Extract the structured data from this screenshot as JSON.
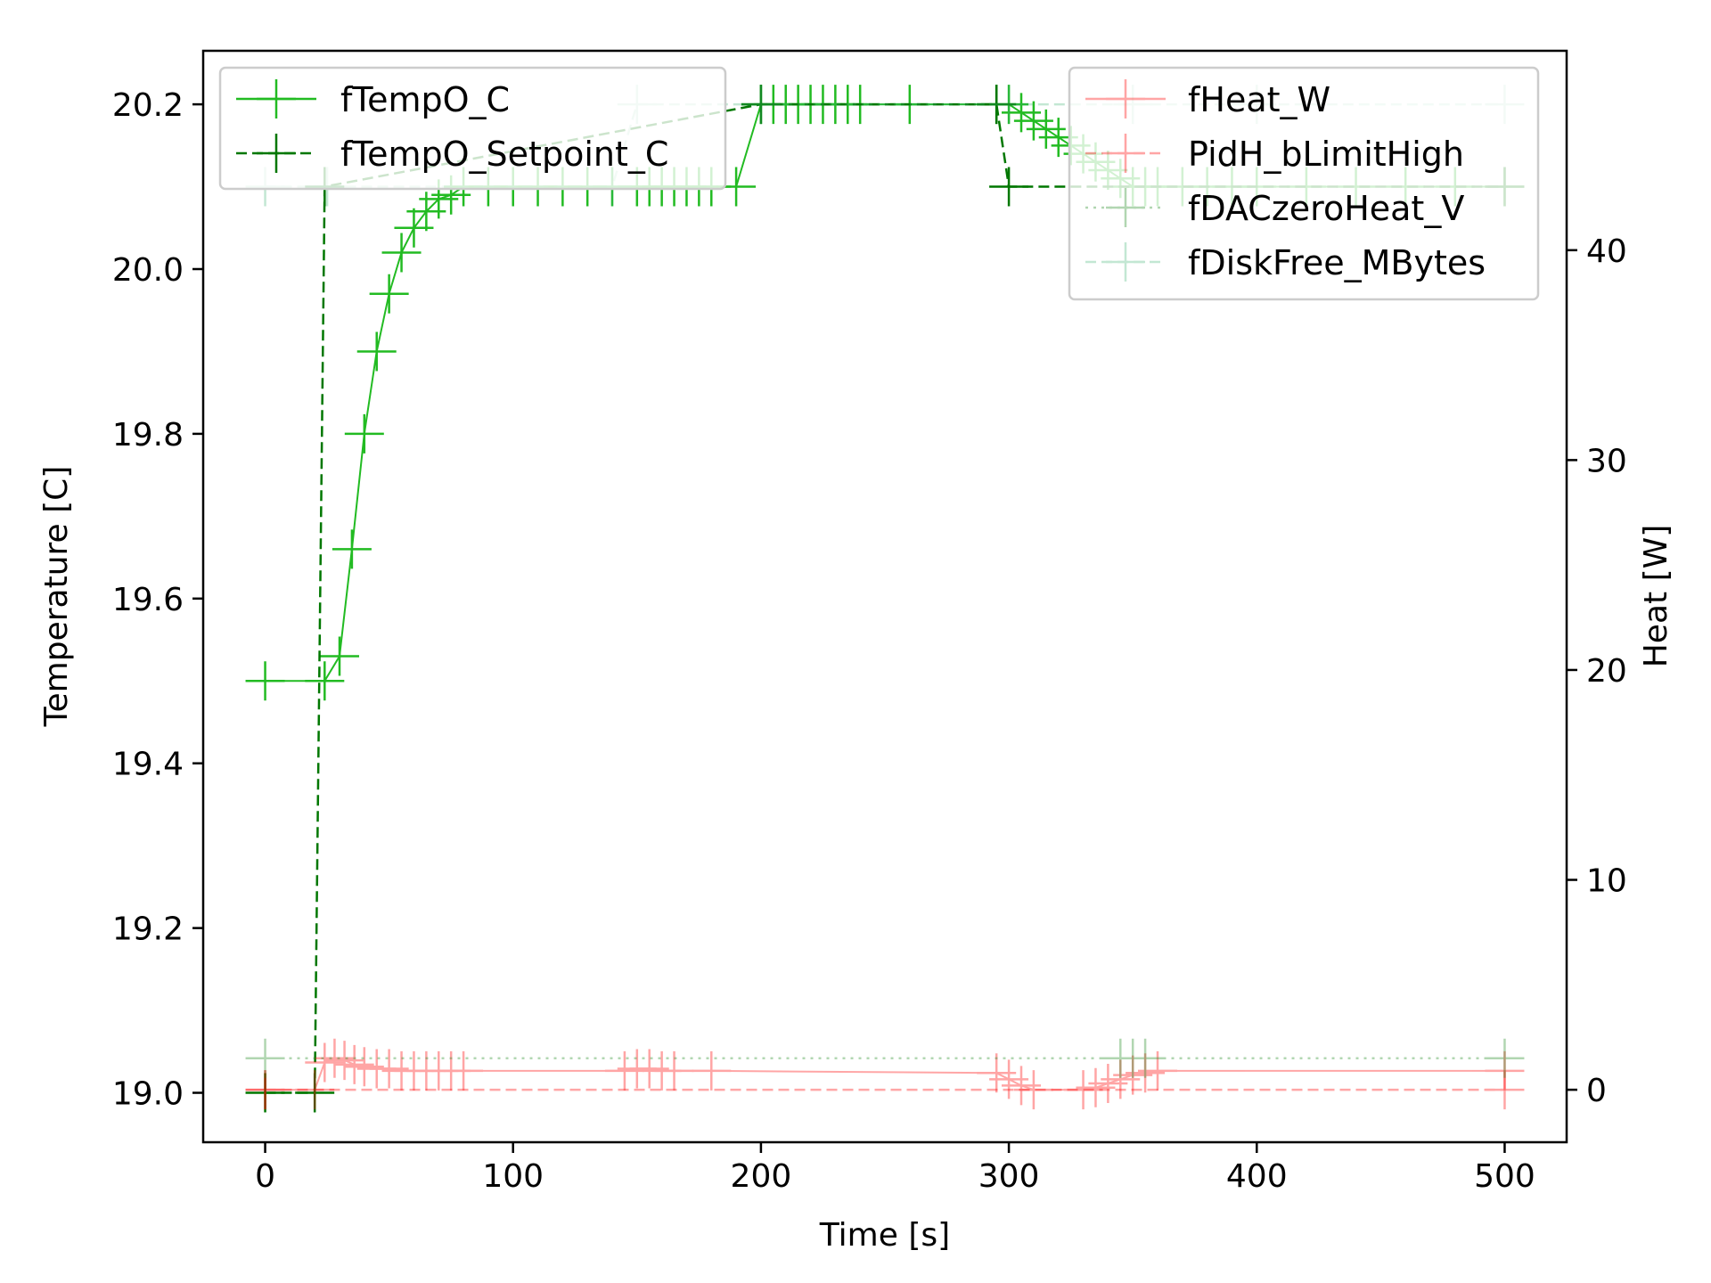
{
  "chart_data": {
    "type": "line",
    "title": "",
    "xlabel": "Time [s]",
    "ylabel_left": "Temperature [C]",
    "ylabel_right": "Heat [W]",
    "xlim": [
      -25,
      525
    ],
    "ylim_left": [
      18.94,
      20.265
    ],
    "ylim_right": [
      -2.5,
      49.5
    ],
    "x_ticks": [
      0,
      100,
      200,
      300,
      400,
      500
    ],
    "y_left_ticks": [
      19.0,
      19.2,
      19.4,
      19.6,
      19.8,
      20.0,
      20.2
    ],
    "y_left_tick_labels": [
      "19.0",
      "19.2",
      "19.4",
      "19.6",
      "19.8",
      "20.0",
      "20.2"
    ],
    "y_right_ticks": [
      0,
      10,
      20,
      30,
      40
    ],
    "grid": false,
    "legends": [
      {
        "placement": "top-left",
        "entries": [
          "fTempO_C",
          "fTempO_Setpoint_C"
        ]
      },
      {
        "placement": "top-right",
        "entries": [
          "fHeat_W",
          "PidH_bLimitHigh",
          "fDACzeroHeat_V",
          "fDiskFree_MBytes"
        ]
      }
    ],
    "series": [
      {
        "name": "fTempO_C",
        "axis": "left",
        "color": "#22bb22",
        "line": "solid",
        "opacity": 1.0,
        "x": [
          0,
          24,
          30,
          35,
          40,
          45,
          50,
          55,
          60,
          65,
          70,
          75,
          80,
          90,
          100,
          110,
          120,
          130,
          140,
          150,
          155,
          160,
          165,
          170,
          175,
          180,
          190,
          200,
          205,
          210,
          215,
          220,
          225,
          230,
          235,
          240,
          260,
          295,
          300,
          305,
          310,
          315,
          320,
          325,
          330,
          335,
          340,
          345,
          350,
          355,
          360,
          370,
          380,
          390,
          400,
          420,
          440,
          460,
          480,
          500
        ],
        "y": [
          19.5,
          19.5,
          19.53,
          19.66,
          19.8,
          19.9,
          19.97,
          20.02,
          20.05,
          20.07,
          20.085,
          20.09,
          20.1,
          20.1,
          20.1,
          20.1,
          20.1,
          20.1,
          20.1,
          20.1,
          20.1,
          20.1,
          20.1,
          20.1,
          20.1,
          20.1,
          20.1,
          20.2,
          20.2,
          20.2,
          20.2,
          20.2,
          20.2,
          20.2,
          20.2,
          20.2,
          20.2,
          20.2,
          20.2,
          20.19,
          20.18,
          20.17,
          20.16,
          20.15,
          20.14,
          20.13,
          20.12,
          20.11,
          20.1,
          20.1,
          20.1,
          20.1,
          20.1,
          20.1,
          20.1,
          20.1,
          20.1,
          20.1,
          20.1,
          20.1
        ]
      },
      {
        "name": "fTempO_Setpoint_C",
        "axis": "left",
        "color": "#007700",
        "line": "dashed",
        "opacity": 1.0,
        "x": [
          0,
          20,
          24,
          200,
          295,
          300,
          500
        ],
        "y": [
          19.0,
          19.0,
          20.1,
          20.2,
          20.2,
          20.1,
          20.1
        ]
      },
      {
        "name": "fHeat_W",
        "axis": "right",
        "color": "#ff0000",
        "line": "solid",
        "opacity": 0.35,
        "x": [
          0,
          20,
          24,
          28,
          32,
          36,
          40,
          45,
          50,
          55,
          60,
          65,
          70,
          75,
          80,
          145,
          150,
          155,
          160,
          165,
          180,
          295,
          300,
          305,
          310,
          330,
          335,
          340,
          345,
          350,
          355,
          360,
          500
        ],
        "y": [
          0,
          0,
          1.3,
          1.5,
          1.4,
          1.2,
          1.1,
          1.0,
          1.0,
          0.9,
          0.9,
          0.9,
          0.9,
          0.9,
          0.9,
          0.9,
          1.0,
          1.0,
          0.9,
          0.9,
          0.9,
          0.8,
          0.5,
          0.2,
          0,
          0,
          0.1,
          0.3,
          0.5,
          0.7,
          0.8,
          0.9,
          0.9
        ]
      },
      {
        "name": "PidH_bLimitHigh",
        "axis": "right",
        "color": "#ff0000",
        "line": "dashed",
        "opacity": 0.35,
        "x": [
          0,
          500
        ],
        "y": [
          0,
          0
        ]
      },
      {
        "name": "fDACzeroHeat_V",
        "axis": "right",
        "color": "#228b22",
        "line": "dotted",
        "opacity": 0.35,
        "x": [
          0,
          345,
          350,
          355,
          500
        ],
        "y": [
          1.5,
          1.5,
          1.5,
          1.5,
          1.5
        ]
      },
      {
        "name": "fDiskFree_MBytes",
        "axis": "left",
        "color": "#3cb371",
        "line": "dashed",
        "opacity": 0.3,
        "x": [
          0,
          25,
          140,
          150,
          200,
          300,
          350,
          400,
          500
        ],
        "y": [
          20.1,
          20.1,
          20.1,
          20.2,
          20.2,
          20.2,
          20.2,
          20.2,
          20.2
        ]
      }
    ]
  }
}
